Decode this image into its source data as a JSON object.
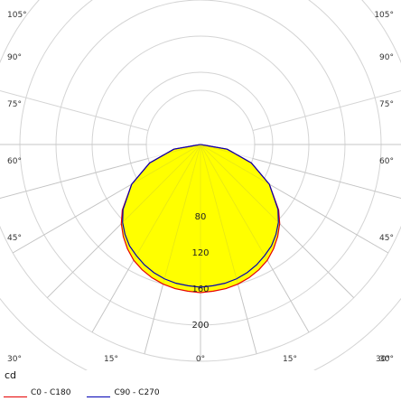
{
  "chart_data": {
    "type": "polar-area",
    "unit": "cd",
    "angle_ticks": {
      "left": [
        "105°",
        "90°",
        "75°",
        "60°",
        "45°",
        "30°"
      ],
      "right": [
        "105°",
        "90°",
        "75°",
        "60°",
        "45°",
        "30°"
      ],
      "bottom": [
        "15°",
        "0°",
        "15°",
        "30°"
      ]
    },
    "radial_ticks": [
      80,
      120,
      160,
      200
    ],
    "radial_max": 240,
    "fill_color": "#ffff00",
    "grid_color": "#d4d4d4",
    "series": [
      {
        "name": "C0 - C180",
        "color": "#e60000",
        "angles": [
          -90,
          -80,
          -70,
          -60,
          -50,
          -45,
          -40,
          -35,
          -30,
          -25,
          -20,
          -15,
          -10,
          -5,
          0,
          5,
          10,
          15,
          20,
          25,
          30,
          35,
          40,
          45,
          50,
          60,
          70,
          80,
          90
        ],
        "values": [
          0,
          30,
          60,
          88,
          113,
          124,
          133,
          141,
          148,
          153,
          157,
          160,
          162,
          163,
          164,
          163,
          162,
          160,
          157,
          153,
          148,
          141,
          133,
          124,
          113,
          88,
          60,
          30,
          0
        ]
      },
      {
        "name": "C90 - C270",
        "color": "#0000b4",
        "angles": [
          -90,
          -80,
          -70,
          -60,
          -50,
          -45,
          -40,
          -35,
          -30,
          -25,
          -20,
          -15,
          -10,
          -5,
          0,
          5,
          10,
          15,
          20,
          25,
          30,
          35,
          40,
          45,
          50,
          60,
          70,
          80,
          90
        ],
        "values": [
          0,
          30,
          60,
          88,
          112,
          122,
          130,
          137,
          142,
          147,
          151,
          154,
          156,
          157,
          158,
          157,
          156,
          154,
          151,
          147,
          142,
          137,
          130,
          122,
          112,
          88,
          60,
          30,
          0
        ]
      }
    ]
  }
}
